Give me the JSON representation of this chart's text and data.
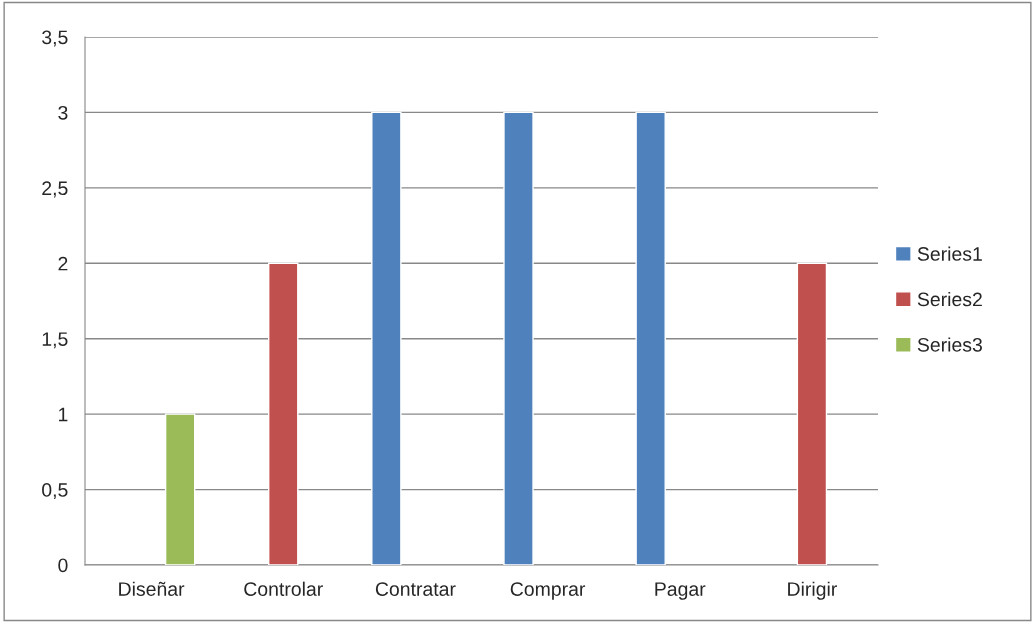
{
  "chart_data": {
    "type": "bar",
    "categories": [
      "Diseñar",
      "Controlar",
      "Contratar",
      "Comprar",
      "Pagar",
      "Dirigir"
    ],
    "series": [
      {
        "name": "Series1",
        "color": "#4f81bd",
        "values": [
          null,
          null,
          3,
          3,
          3,
          null
        ]
      },
      {
        "name": "Series2",
        "color": "#c0504d",
        "values": [
          null,
          2,
          null,
          null,
          null,
          2
        ]
      },
      {
        "name": "Series3",
        "color": "#9bbb59",
        "values": [
          1,
          null,
          null,
          null,
          null,
          null
        ]
      }
    ],
    "ylim": [
      0,
      3.5
    ],
    "yticks": [
      0,
      {
        "value": 0.5,
        "label": "0,5"
      },
      1,
      {
        "value": 1.5,
        "label": "1,5"
      },
      2,
      {
        "value": 2.5,
        "label": "2,5"
      },
      3,
      {
        "value": 3.5,
        "label": "3,5"
      }
    ],
    "grid": "y",
    "legend": "right"
  }
}
